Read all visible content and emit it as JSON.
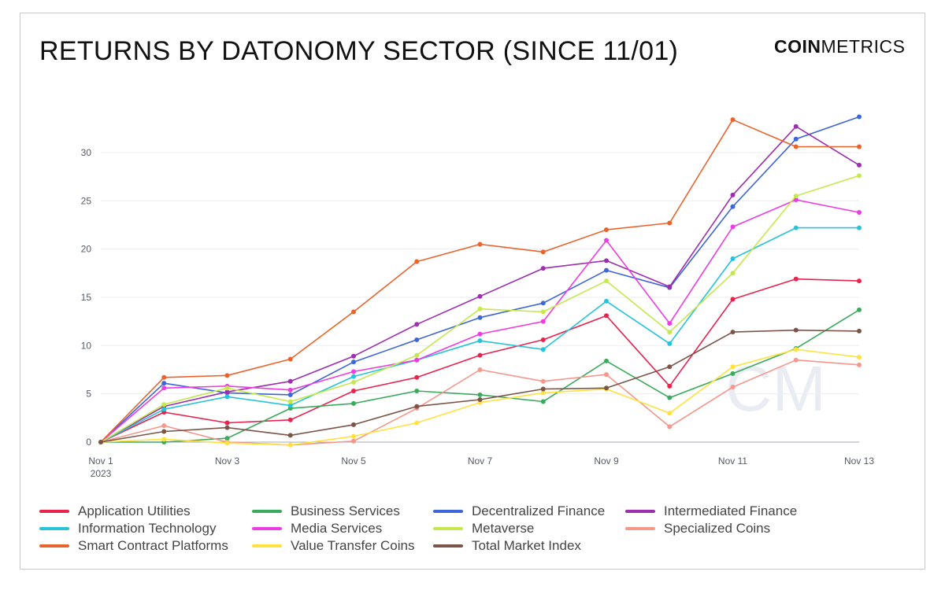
{
  "header": {
    "title": "RETURNS BY DATONOMY SECTOR (SINCE 11/01)",
    "logo_bold": "COIN",
    "logo_rest": "METRICS"
  },
  "watermark": "CM",
  "chart_data": {
    "type": "line",
    "title": "RETURNS BY DATONOMY SECTOR (SINCE 11/01)",
    "xlabel": "",
    "ylabel": "",
    "ylim": [
      0,
      34
    ],
    "yticks": [
      0,
      5,
      10,
      15,
      20,
      25,
      30
    ],
    "grid": true,
    "legend_position": "bottom",
    "x": [
      "Nov 1 2023",
      "Nov 2",
      "Nov 3",
      "Nov 4",
      "Nov 5",
      "Nov 6",
      "Nov 7",
      "Nov 8",
      "Nov 9",
      "Nov 10",
      "Nov 11",
      "Nov 12",
      "Nov 13"
    ],
    "xticks": [
      {
        "index": 0,
        "label": "Nov 1",
        "sublabel": "2023"
      },
      {
        "index": 2,
        "label": "Nov 3",
        "sublabel": ""
      },
      {
        "index": 4,
        "label": "Nov 5",
        "sublabel": ""
      },
      {
        "index": 6,
        "label": "Nov 7",
        "sublabel": ""
      },
      {
        "index": 8,
        "label": "Nov 9",
        "sublabel": ""
      },
      {
        "index": 10,
        "label": "Nov 11",
        "sublabel": ""
      },
      {
        "index": 12,
        "label": "Nov 13",
        "sublabel": ""
      }
    ],
    "series": [
      {
        "name": "Application Utilities",
        "color": "#e8234d",
        "values": [
          0,
          3.1,
          2.0,
          2.3,
          5.3,
          6.7,
          9.0,
          10.6,
          13.1,
          5.8,
          14.8,
          16.9,
          16.7
        ]
      },
      {
        "name": "Business Services",
        "color": "#3aaa5c",
        "values": [
          0,
          0.0,
          0.4,
          3.5,
          4.0,
          5.3,
          4.9,
          4.2,
          8.4,
          4.6,
          7.1,
          9.7,
          13.7
        ]
      },
      {
        "name": "Decentralized Finance",
        "color": "#3f66d6",
        "values": [
          0,
          6.1,
          5.1,
          4.9,
          8.3,
          10.6,
          12.9,
          14.4,
          17.8,
          16.0,
          24.4,
          31.4,
          33.7
        ]
      },
      {
        "name": "Intermediated Finance",
        "color": "#9b2fae",
        "values": [
          0,
          3.7,
          5.2,
          6.3,
          8.9,
          12.2,
          15.1,
          18.0,
          18.8,
          16.1,
          25.6,
          32.7,
          28.7
        ]
      },
      {
        "name": "Information Technology",
        "color": "#26c3d9",
        "values": [
          0,
          3.4,
          4.7,
          3.8,
          6.8,
          8.5,
          10.5,
          9.6,
          14.6,
          10.2,
          19.0,
          22.2,
          22.2
        ]
      },
      {
        "name": "Media Services",
        "color": "#ec3de3",
        "values": [
          0,
          5.6,
          5.8,
          5.4,
          7.3,
          8.5,
          11.2,
          12.5,
          20.9,
          12.3,
          22.3,
          25.1,
          23.8
        ]
      },
      {
        "name": "Metaverse",
        "color": "#c5e84c",
        "values": [
          0,
          3.9,
          5.6,
          4.2,
          6.2,
          9.0,
          13.8,
          13.5,
          16.7,
          11.4,
          17.5,
          25.5,
          27.6
        ]
      },
      {
        "name": "Specialized Coins",
        "color": "#f4978c",
        "values": [
          0,
          1.7,
          0.0,
          -0.3,
          0.1,
          3.5,
          7.5,
          6.3,
          7.0,
          1.6,
          5.7,
          8.5,
          8.0
        ]
      },
      {
        "name": "Smart Contract Platforms",
        "color": "#e8642c",
        "values": [
          0,
          6.7,
          6.9,
          8.6,
          13.5,
          18.7,
          20.5,
          19.7,
          22.0,
          22.7,
          33.4,
          30.6,
          30.6
        ]
      },
      {
        "name": "Value Transfer Coins",
        "color": "#ffe23d",
        "values": [
          0,
          0.3,
          -0.1,
          -0.3,
          0.6,
          2.0,
          4.1,
          5.1,
          5.5,
          3.0,
          7.8,
          9.6,
          8.8
        ]
      },
      {
        "name": "Total Market Index",
        "color": "#7a5548",
        "values": [
          0,
          1.1,
          1.5,
          0.7,
          1.8,
          3.7,
          4.4,
          5.5,
          5.6,
          7.8,
          11.4,
          11.6,
          11.5
        ]
      }
    ]
  }
}
